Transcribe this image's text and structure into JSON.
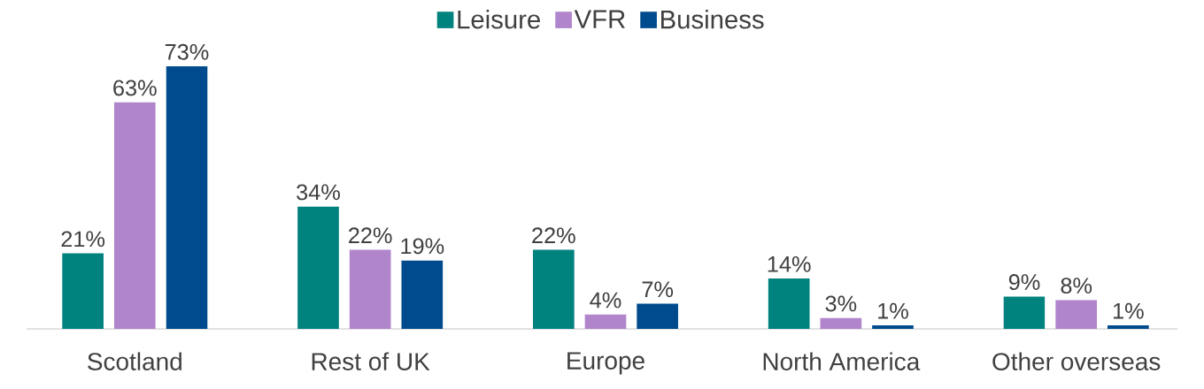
{
  "chart_data": {
    "type": "bar",
    "categories": [
      "Scotland",
      "Rest of UK",
      "Europe",
      "North America",
      "Other overseas"
    ],
    "series": [
      {
        "name": "Leisure",
        "color": "#00827f",
        "values": [
          21,
          34,
          22,
          14,
          9
        ],
        "value_labels": [
          "21%",
          "34%",
          "22%",
          "14%",
          "9%"
        ]
      },
      {
        "name": "VFR",
        "color": "#b085cc",
        "values": [
          63,
          22,
          4,
          3,
          8
        ],
        "value_labels": [
          "63%",
          "22%",
          "4%",
          "3%",
          "8%"
        ]
      },
      {
        "name": "Business",
        "color": "#004b8d",
        "values": [
          73,
          19,
          7,
          1,
          1
        ],
        "value_labels": [
          "73%",
          "19%",
          "7%",
          "1%",
          "1%"
        ]
      }
    ],
    "legend": "top"
  }
}
